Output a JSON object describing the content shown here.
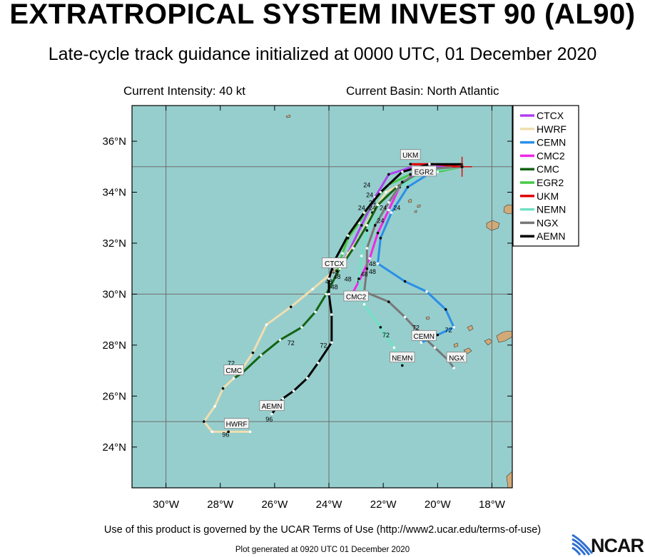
{
  "header": {
    "title": "EXTRATROPICAL SYSTEM INVEST 90 (AL90)",
    "subtitle": "Late-cycle track guidance initialized at 0000 UTC, 01 December 2020",
    "current_intensity": "Current Intensity: 40 kt",
    "current_basin": "Current Basin: North Atlantic"
  },
  "footer": {
    "terms": "Use of this product is governed by the UCAR Terms of Use (http://www2.ucar.edu/terms-of-use)",
    "generated": "Plot generated at 0920 UTC   01 December 2020",
    "logo": "NCAR"
  },
  "colors": {
    "ocean": "#96cecd",
    "land": "#d2aa78",
    "grid": "#6e6e6e"
  },
  "map": {
    "lon_range": [
      -31.25,
      -17.25
    ],
    "lat_range": [
      22.4,
      37.4
    ],
    "lon_ticks": [
      {
        "value": -30,
        "label": "30°W"
      },
      {
        "value": -28,
        "label": "28°W"
      },
      {
        "value": -26,
        "label": "26°W"
      },
      {
        "value": -24,
        "label": "24°W"
      },
      {
        "value": -22,
        "label": "22°W"
      },
      {
        "value": -20,
        "label": "20°W"
      },
      {
        "value": -18,
        "label": "18°W"
      }
    ],
    "lat_ticks": [
      {
        "value": 24,
        "label": "24°N"
      },
      {
        "value": 26,
        "label": "26°N"
      },
      {
        "value": 28,
        "label": "28°N"
      },
      {
        "value": 30,
        "label": "30°N"
      },
      {
        "value": 32,
        "label": "32°N"
      },
      {
        "value": 34,
        "label": "34°N"
      },
      {
        "value": 36,
        "label": "36°N"
      }
    ],
    "grid_lon": [
      -30,
      -24,
      -18
    ],
    "grid_lat": [
      25,
      30,
      35
    ],
    "current_position": [
      -19.1,
      35.0
    ]
  },
  "chart_data": {
    "type": "track-map",
    "series": [
      {
        "name": "CTCX",
        "color": "#b040f0",
        "points": [
          [
            -19.1,
            35.0
          ],
          [
            -20.9,
            35.0
          ],
          [
            -21.8,
            34.7
          ],
          [
            -22.3,
            33.8
          ],
          [
            -22.8,
            32.7
          ],
          [
            -23.3,
            31.6
          ],
          [
            -23.7,
            31.0
          ]
        ]
      },
      {
        "name": "HWRF",
        "color": "#f0deb0",
        "points": [
          [
            -19.1,
            35.0
          ],
          [
            -20.4,
            34.9
          ],
          [
            -21.2,
            34.4
          ],
          [
            -21.9,
            34.0
          ],
          [
            -22.4,
            33.2
          ],
          [
            -22.9,
            32.2
          ],
          [
            -23.6,
            31.1
          ],
          [
            -24.6,
            30.2
          ],
          [
            -25.4,
            29.5
          ],
          [
            -26.3,
            28.8
          ],
          [
            -26.8,
            27.7
          ],
          [
            -27.3,
            26.9
          ],
          [
            -27.9,
            26.3
          ],
          [
            -28.2,
            25.6
          ],
          [
            -28.6,
            25.0
          ],
          [
            -28.3,
            24.6
          ],
          [
            -27.7,
            24.6
          ],
          [
            -26.9,
            24.6
          ]
        ]
      },
      {
        "name": "CEMN",
        "color": "#2a8fe8",
        "points": [
          [
            -19.1,
            35.0
          ],
          [
            -20.2,
            34.8
          ],
          [
            -21.1,
            34.2
          ],
          [
            -21.7,
            33.2
          ],
          [
            -22.1,
            32.2
          ],
          [
            -22.2,
            31.2
          ],
          [
            -21.2,
            30.5
          ],
          [
            -20.4,
            30.1
          ],
          [
            -19.7,
            29.4
          ],
          [
            -19.4,
            28.7
          ],
          [
            -20.0,
            28.4
          ],
          [
            -20.6,
            28.1
          ]
        ]
      },
      {
        "name": "CMC2",
        "color": "#f028e8",
        "points": [
          [
            -19.1,
            35.0
          ],
          [
            -20.8,
            34.8
          ],
          [
            -21.4,
            34.2
          ],
          [
            -21.8,
            33.3
          ],
          [
            -22.2,
            32.4
          ],
          [
            -22.5,
            31.4
          ],
          [
            -22.9,
            30.5
          ],
          [
            -23.2,
            29.9
          ]
        ]
      },
      {
        "name": "CMC",
        "color": "#146414",
        "points": [
          [
            -19.1,
            35.0
          ],
          [
            -20.5,
            34.9
          ],
          [
            -21.5,
            34.2
          ],
          [
            -22.2,
            33.5
          ],
          [
            -22.6,
            32.7
          ],
          [
            -23.1,
            31.8
          ],
          [
            -23.6,
            31.0
          ],
          [
            -24.1,
            30.0
          ],
          [
            -24.5,
            29.3
          ],
          [
            -25.0,
            28.7
          ],
          [
            -25.8,
            28.2
          ],
          [
            -26.5,
            27.6
          ],
          [
            -27.2,
            26.9
          ],
          [
            -27.5,
            26.7
          ]
        ]
      },
      {
        "name": "EGR2",
        "color": "#46c846",
        "points": [
          [
            -19.1,
            35.0
          ],
          [
            -20.0,
            34.8
          ],
          [
            -21.0,
            34.7
          ],
          [
            -21.8,
            34.3
          ],
          [
            -22.4,
            33.6
          ],
          [
            -22.9,
            32.8
          ],
          [
            -23.3,
            32.2
          ],
          [
            -23.5,
            31.6
          ],
          [
            -23.7,
            30.9
          ]
        ]
      },
      {
        "name": "UKM",
        "color": "#e00000",
        "points": [
          [
            -19.1,
            35.0
          ],
          [
            -20.1,
            35.1
          ],
          [
            -21.0,
            35.1
          ]
        ]
      },
      {
        "name": "NEMN",
        "color": "#70e2c4",
        "points": [
          [
            -19.1,
            35.0
          ],
          [
            -20.5,
            34.8
          ],
          [
            -21.4,
            34.2
          ],
          [
            -22.0,
            33.3
          ],
          [
            -22.6,
            32.5
          ],
          [
            -22.8,
            31.5
          ],
          [
            -22.9,
            30.6
          ],
          [
            -22.7,
            29.6
          ],
          [
            -22.1,
            28.7
          ],
          [
            -21.6,
            27.9
          ],
          [
            -21.3,
            27.2
          ]
        ]
      },
      {
        "name": "NGX",
        "color": "#787878",
        "points": [
          [
            -19.1,
            35.0
          ],
          [
            -20.4,
            34.9
          ],
          [
            -21.3,
            34.4
          ],
          [
            -21.8,
            33.6
          ],
          [
            -22.3,
            32.7
          ],
          [
            -22.6,
            31.8
          ],
          [
            -22.6,
            31.0
          ],
          [
            -22.7,
            30.1
          ],
          [
            -21.8,
            29.7
          ],
          [
            -21.2,
            29.1
          ],
          [
            -20.6,
            28.4
          ],
          [
            -20.1,
            27.9
          ],
          [
            -19.6,
            27.4
          ],
          [
            -19.4,
            27.1
          ]
        ]
      },
      {
        "name": "AEMN",
        "color": "#000000",
        "points": [
          [
            -19.1,
            35.1
          ],
          [
            -20.3,
            35.1
          ],
          [
            -21.3,
            34.8
          ],
          [
            -22.1,
            34.0
          ],
          [
            -22.7,
            33.2
          ],
          [
            -23.3,
            32.3
          ],
          [
            -23.8,
            31.3
          ],
          [
            -24.0,
            30.6
          ],
          [
            -24.0,
            30.0
          ],
          [
            -23.9,
            29.2
          ],
          [
            -23.9,
            28.1
          ],
          [
            -24.4,
            27.3
          ],
          [
            -24.8,
            26.7
          ],
          [
            -25.3,
            26.2
          ],
          [
            -25.7,
            25.9
          ],
          [
            -26.1,
            25.3
          ]
        ]
      }
    ],
    "legend": {
      "placement": "right"
    },
    "model_labels": [
      {
        "text": "UKM",
        "lon": -21.0,
        "lat": 35.45
      },
      {
        "text": "EGR2",
        "lon": -20.5,
        "lat": 34.8
      },
      {
        "text": "CTCX",
        "lon": -23.8,
        "lat": 31.2
      },
      {
        "text": "CMC2",
        "lon": -23.0,
        "lat": 29.9
      },
      {
        "text": "CEMN",
        "lon": -20.5,
        "lat": 28.35
      },
      {
        "text": "NEMN",
        "lon": -21.3,
        "lat": 27.5
      },
      {
        "text": "NGX",
        "lon": -19.3,
        "lat": 27.5
      },
      {
        "text": "CMC",
        "lon": -27.5,
        "lat": 27.0
      },
      {
        "text": "AEMN",
        "lon": -26.1,
        "lat": 25.6
      },
      {
        "text": "HWRF",
        "lon": -27.4,
        "lat": 24.9
      }
    ],
    "hour_labels": [
      {
        "text": "24",
        "lon": -22.6,
        "lat": 34.2
      },
      {
        "text": "24",
        "lon": -22.5,
        "lat": 33.8
      },
      {
        "text": "24",
        "lon": -22.4,
        "lat": 33.5
      },
      {
        "text": "24",
        "lon": -22.8,
        "lat": 33.3
      },
      {
        "text": "24",
        "lon": -22.4,
        "lat": 33.3
      },
      {
        "text": "24",
        "lon": -22.0,
        "lat": 33.3
      },
      {
        "text": "24",
        "lon": -21.5,
        "lat": 33.3
      },
      {
        "text": "24",
        "lon": -22.1,
        "lat": 32.8
      },
      {
        "text": "48",
        "lon": -23.8,
        "lat": 30.8
      },
      {
        "text": "48",
        "lon": -23.7,
        "lat": 30.6
      },
      {
        "text": "48",
        "lon": -24.0,
        "lat": 30.4
      },
      {
        "text": "48",
        "lon": -23.3,
        "lat": 30.5
      },
      {
        "text": "48",
        "lon": -22.7,
        "lat": 30.7
      },
      {
        "text": "48",
        "lon": -22.4,
        "lat": 30.8
      },
      {
        "text": "48",
        "lon": -22.4,
        "lat": 31.1
      },
      {
        "text": "48",
        "lon": -23.8,
        "lat": 30.2
      },
      {
        "text": "72",
        "lon": -27.6,
        "lat": 27.2
      },
      {
        "text": "72",
        "lon": -25.4,
        "lat": 28.0
      },
      {
        "text": "72",
        "lon": -24.2,
        "lat": 27.9
      },
      {
        "text": "72",
        "lon": -21.9,
        "lat": 28.3
      },
      {
        "text": "72",
        "lon": -20.8,
        "lat": 28.6
      },
      {
        "text": "72",
        "lon": -19.6,
        "lat": 28.5
      },
      {
        "text": "96",
        "lon": -26.2,
        "lat": 25.0
      },
      {
        "text": "96",
        "lon": -27.8,
        "lat": 24.4
      }
    ]
  }
}
